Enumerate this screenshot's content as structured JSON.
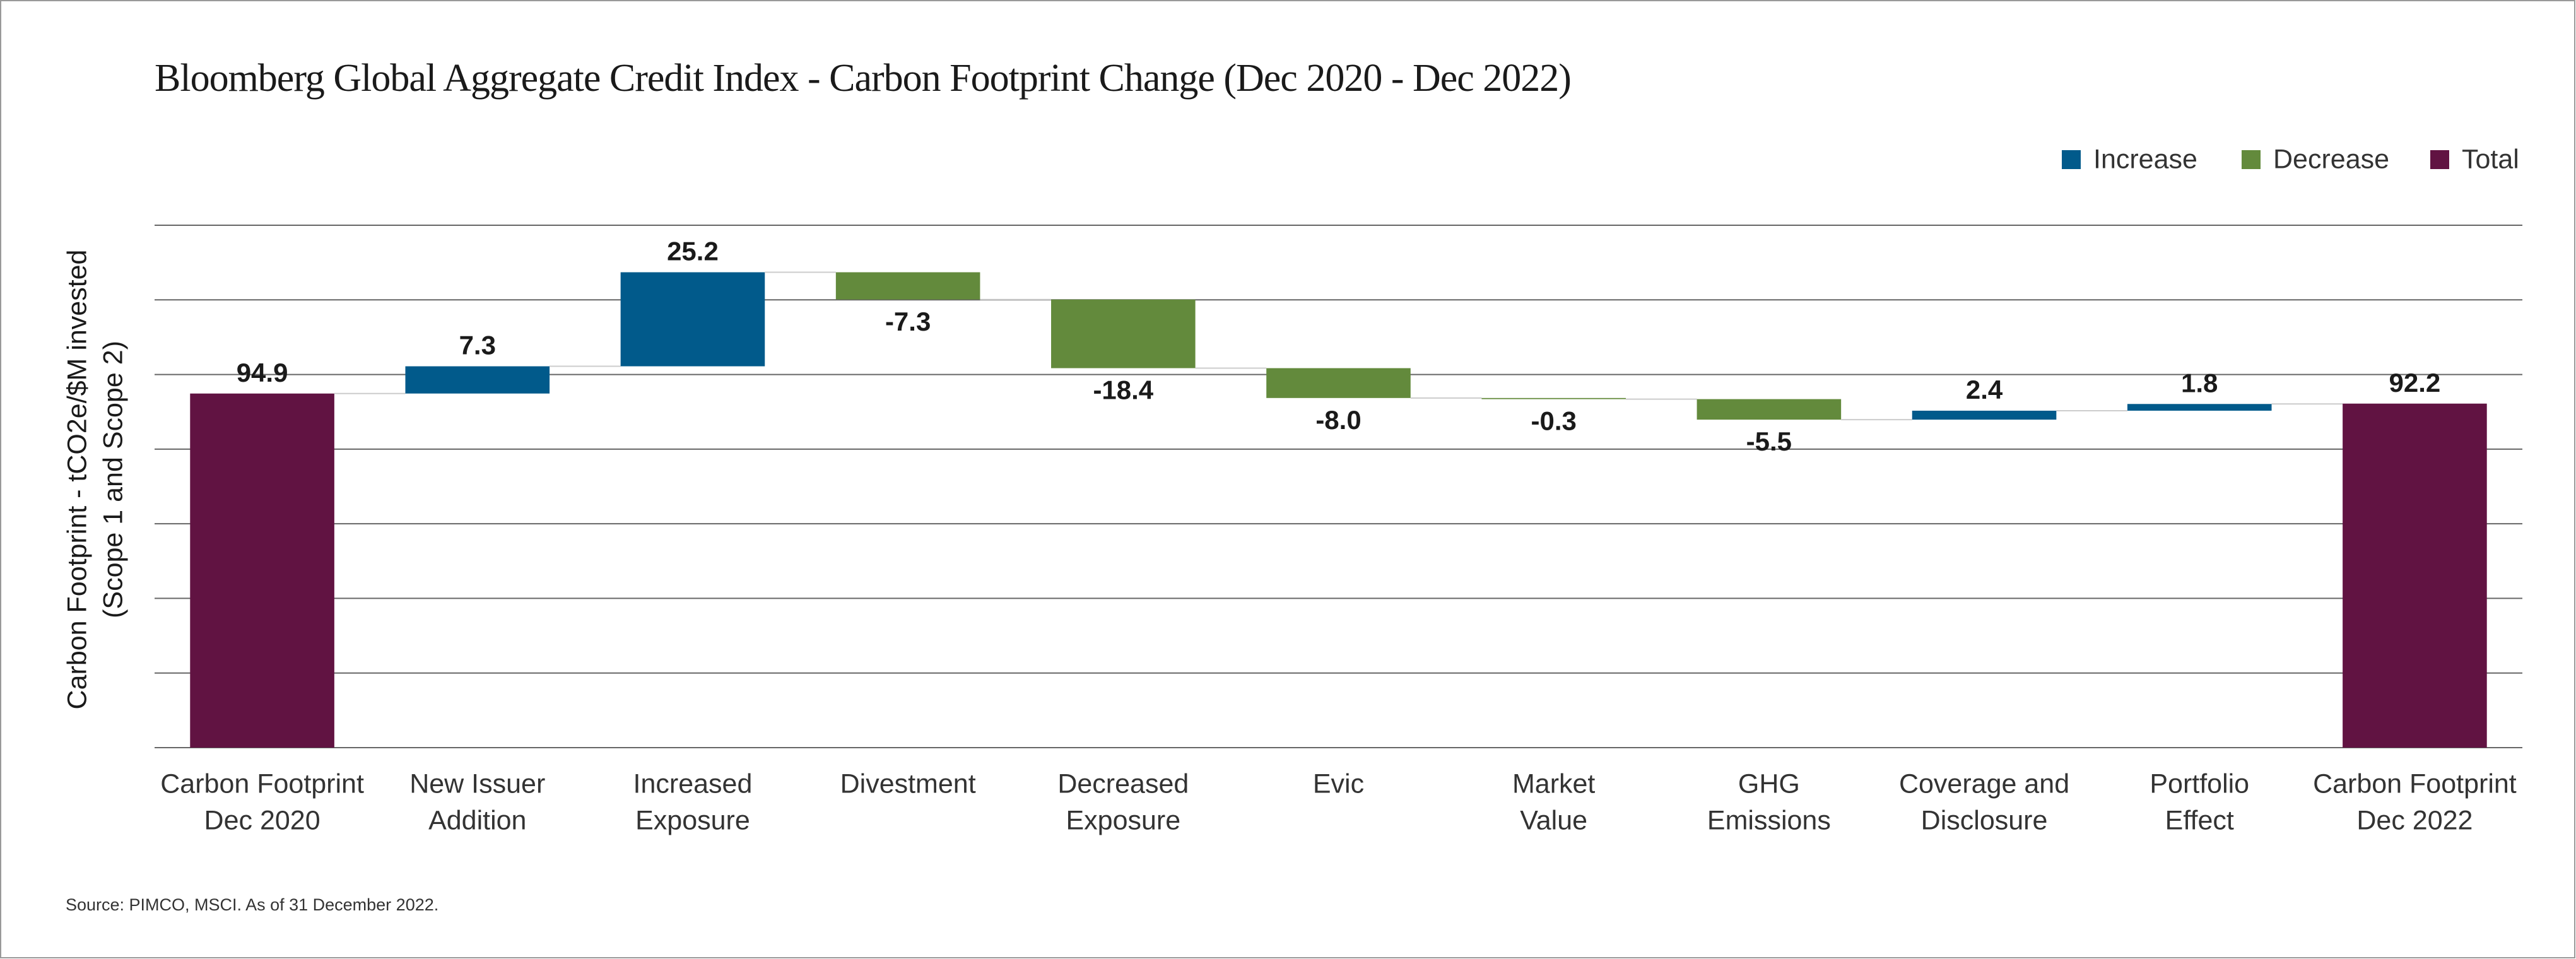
{
  "chart_data": {
    "type": "waterfall",
    "title": "Bloomberg Global Aggregate Credit Index - Carbon Footprint Change (Dec 2020 - Dec 2022)",
    "ylabel": [
      "Carbon Footprint - tCO2e/$M invested",
      "(Scope 1 and Scope 2)"
    ],
    "categories": [
      [
        "Carbon Footprint",
        "Dec 2020"
      ],
      [
        "New Issuer",
        "Addition"
      ],
      [
        "Increased",
        "Exposure"
      ],
      [
        "Divestment"
      ],
      [
        "Decreased",
        "Exposure"
      ],
      [
        "Evic"
      ],
      [
        "Market",
        "Value"
      ],
      [
        "GHG",
        "Emissions"
      ],
      [
        "Coverage and",
        "Disclosure"
      ],
      [
        "Portfolio",
        "Effect"
      ],
      [
        "Carbon Footprint",
        "Dec 2022"
      ]
    ],
    "values": [
      94.9,
      7.3,
      25.2,
      -7.3,
      -18.4,
      -8.0,
      -0.3,
      -5.5,
      2.4,
      1.8,
      92.2
    ],
    "value_labels": [
      "94.9",
      "7.3",
      "25.2",
      "-7.3",
      "-18.4",
      "-8.0",
      "-0.3",
      "-5.5",
      "2.4",
      "1.8",
      "92.2"
    ],
    "is_total": [
      true,
      false,
      false,
      false,
      false,
      false,
      false,
      false,
      false,
      false,
      true
    ],
    "legend": [
      {
        "name": "Increase",
        "color": "#015a8b"
      },
      {
        "name": "Decrease",
        "color": "#638a3c"
      },
      {
        "name": "Total",
        "color": "#611342"
      }
    ],
    "ylim": [
      0,
      140
    ],
    "yticks": [
      0,
      20,
      40,
      60,
      80,
      100,
      120,
      140
    ],
    "ytick_labels": false,
    "grid": true,
    "legend_position": "top-right",
    "source": "Source: PIMCO, MSCI. As of 31 December 2022."
  }
}
